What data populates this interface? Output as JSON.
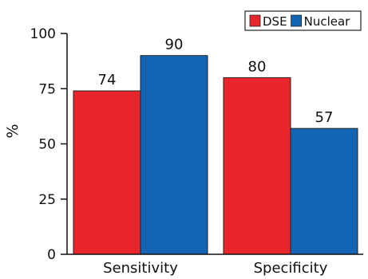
{
  "chart_data": {
    "type": "bar",
    "categories": [
      "Sensitivity",
      "Specificity"
    ],
    "series": [
      {
        "name": "DSE",
        "values": [
          74,
          80
        ],
        "color": "#e8262b"
      },
      {
        "name": "Nuclear",
        "values": [
          90,
          57
        ],
        "color": "#1464b4"
      }
    ],
    "ylabel": "%",
    "ylim": [
      0,
      100
    ],
    "yticks": [
      0,
      25,
      50,
      75,
      100
    ],
    "legend_position": "top-right",
    "grid": false
  }
}
